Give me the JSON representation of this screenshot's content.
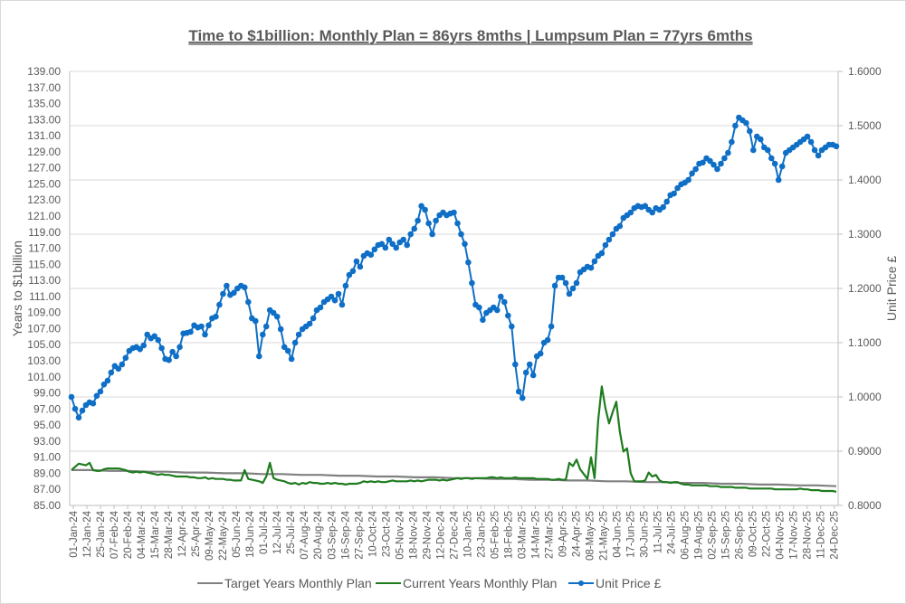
{
  "chart_data": {
    "type": "line",
    "title": "Time to $1billion: Monthly Plan = 86yrs 8mths | Lumpsum Plan = 77yrs 6mths",
    "ylabel": "Years to $1billion",
    "y2label": "Unit Price £",
    "ylim": [
      85,
      139
    ],
    "y2lim": [
      0.8,
      1.6
    ],
    "grid": true,
    "legend_position": "bottom",
    "yticks": [
      "85.00",
      "87.00",
      "89.00",
      "91.00",
      "93.00",
      "95.00",
      "97.00",
      "99.00",
      "101.00",
      "103.00",
      "105.00",
      "107.00",
      "109.00",
      "111.00",
      "113.00",
      "115.00",
      "117.00",
      "119.00",
      "121.00",
      "123.00",
      "125.00",
      "127.00",
      "129.00",
      "131.00",
      "133.00",
      "135.00",
      "137.00",
      "139.00"
    ],
    "y2ticks": [
      "0.8000",
      "0.9000",
      "1.0000",
      "1.1000",
      "1.2000",
      "1.3000",
      "1.4000",
      "1.5000",
      "1.6000"
    ],
    "xticks": [
      "01-Jan-24",
      "12-Jan-24",
      "25-Jan-24",
      "07-Feb-24",
      "20-Feb-24",
      "04-Mar-24",
      "15-Mar-24",
      "28-Mar-24",
      "12-Apr-24",
      "25-Apr-24",
      "09-May-24",
      "22-May-24",
      "05-Jun-24",
      "18-Jun-24",
      "01-Jul-24",
      "12-Jul-24",
      "25-Jul-24",
      "07-Aug-24",
      "20-Aug-24",
      "03-Sep-24",
      "16-Sep-24",
      "27-Sep-24",
      "10-Oct-24",
      "23-Oct-24",
      "05-Nov-24",
      "18-Nov-24",
      "29-Nov-24",
      "12-Dec-24",
      "27-Dec-24",
      "10-Jan-25",
      "23-Jan-25",
      "05-Feb-25",
      "18-Feb-25",
      "03-Mar-25",
      "14-Mar-25",
      "27-Mar-25",
      "09-Apr-25",
      "24-Apr-25",
      "08-May-25",
      "21-May-25",
      "04-Jun-25",
      "17-Jun-25",
      "30-Jun-25",
      "11-Jul-25",
      "24-Jul-25",
      "06-Aug-25",
      "19-Aug-25",
      "02-Sep-25",
      "15-Sep-25",
      "26-Sep-25",
      "09-Oct-25",
      "22-Oct-25",
      "04-Nov-25",
      "17-Nov-25",
      "28-Nov-25",
      "11-Dec-25",
      "24-Dec-25"
    ],
    "x_fraction_note": "series values sampled evenly across the x range (first to last date)",
    "series": [
      {
        "name": "Target Years Monthly Plan",
        "axis": "left",
        "color": "#808080",
        "marker": false,
        "values": [
          89.4,
          89.4,
          89.3,
          89.3,
          89.2,
          89.2,
          89.1,
          89.1,
          89.0,
          89.0,
          88.9,
          88.9,
          88.8,
          88.8,
          88.7,
          88.7,
          88.6,
          88.6,
          88.5,
          88.5,
          88.4,
          88.4,
          88.3,
          88.3,
          88.2,
          88.2,
          88.1,
          88.1,
          88.0,
          88.0,
          87.9,
          87.9,
          87.8,
          87.8,
          87.7,
          87.7,
          87.6,
          87.6,
          87.5,
          87.5,
          87.4
        ]
      },
      {
        "name": "Current Years Monthly Plan",
        "axis": "left",
        "color": "#1e7b1e",
        "marker": false,
        "values": [
          89.4,
          89.8,
          90.2,
          90.1,
          90.0,
          90.3,
          89.4,
          89.3,
          89.3,
          89.5,
          89.6,
          89.6,
          89.6,
          89.6,
          89.5,
          89.4,
          89.2,
          89.1,
          89.2,
          89.1,
          89.2,
          89.1,
          89.0,
          88.9,
          88.8,
          88.9,
          88.8,
          88.8,
          88.7,
          88.6,
          88.6,
          88.6,
          88.6,
          88.5,
          88.5,
          88.4,
          88.4,
          88.5,
          88.3,
          88.4,
          88.3,
          88.3,
          88.3,
          88.2,
          88.2,
          88.1,
          88.1,
          88.1,
          89.4,
          88.3,
          88.2,
          88.1,
          88.0,
          87.8,
          88.6,
          90.3,
          88.4,
          88.2,
          88.1,
          88.0,
          87.8,
          87.7,
          87.8,
          87.6,
          87.8,
          87.7,
          87.9,
          87.8,
          87.8,
          87.7,
          87.7,
          87.8,
          87.7,
          87.8,
          87.7,
          87.7,
          87.6,
          87.7,
          87.7,
          87.7,
          87.8,
          88.0,
          87.9,
          88.0,
          87.9,
          88.0,
          87.9,
          87.9,
          88.0,
          88.1,
          88.0,
          88.0,
          88.0,
          88.0,
          88.1,
          88.0,
          88.1,
          88.0,
          88.1,
          88.2,
          88.2,
          88.2,
          88.1,
          88.2,
          88.1,
          88.2,
          88.3,
          88.4,
          88.3,
          88.4,
          88.4,
          88.3,
          88.4,
          88.4,
          88.4,
          88.4,
          88.5,
          88.5,
          88.4,
          88.5,
          88.4,
          88.4,
          88.4,
          88.5,
          88.4,
          88.4,
          88.4,
          88.4,
          88.4,
          88.3,
          88.3,
          88.3,
          88.3,
          88.2,
          88.2,
          88.3,
          88.2,
          88.2,
          90.3,
          89.9,
          90.7,
          89.5,
          88.9,
          88.3,
          91.0,
          88.4,
          95.6,
          99.8,
          97.1,
          95.2,
          96.6,
          97.9,
          94.2,
          91.7,
          92.1,
          89.0,
          88.0,
          88.0,
          88.0,
          88.1,
          89.1,
          88.6,
          88.8,
          88.1,
          87.9,
          87.9,
          87.8,
          87.9,
          87.9,
          87.7,
          87.6,
          87.6,
          87.5,
          87.5,
          87.5,
          87.5,
          87.5,
          87.4,
          87.4,
          87.4,
          87.3,
          87.3,
          87.3,
          87.3,
          87.2,
          87.2,
          87.2,
          87.2,
          87.1,
          87.1,
          87.1,
          87.1,
          87.1,
          87.1,
          87.1,
          87.0,
          87.0,
          87.0,
          87.0,
          87.0,
          87.0,
          87.0,
          87.1,
          87.0,
          87.0,
          86.9,
          86.9,
          86.9,
          86.8,
          86.8,
          86.8,
          86.8,
          86.7
        ]
      },
      {
        "name": "Unit Price £",
        "axis": "right",
        "color": "#0f6fc6",
        "marker": true,
        "values": [
          1.0,
          0.978,
          0.962,
          0.975,
          0.985,
          0.99,
          0.988,
          1.002,
          1.01,
          1.023,
          1.03,
          1.045,
          1.057,
          1.052,
          1.06,
          1.072,
          1.085,
          1.09,
          1.092,
          1.088,
          1.095,
          1.115,
          1.108,
          1.112,
          1.105,
          1.09,
          1.07,
          1.068,
          1.083,
          1.075,
          1.092,
          1.117,
          1.118,
          1.12,
          1.132,
          1.128,
          1.13,
          1.115,
          1.132,
          1.145,
          1.148,
          1.17,
          1.19,
          1.205,
          1.188,
          1.192,
          1.2,
          1.205,
          1.202,
          1.175,
          1.145,
          1.14,
          1.075,
          1.115,
          1.13,
          1.16,
          1.155,
          1.148,
          1.125,
          1.092,
          1.085,
          1.07,
          1.1,
          1.115,
          1.125,
          1.13,
          1.135,
          1.145,
          1.16,
          1.165,
          1.175,
          1.18,
          1.185,
          1.178,
          1.19,
          1.17,
          1.205,
          1.225,
          1.232,
          1.25,
          1.24,
          1.26,
          1.265,
          1.262,
          1.272,
          1.28,
          1.282,
          1.275,
          1.29,
          1.282,
          1.275,
          1.285,
          1.29,
          1.28,
          1.3,
          1.31,
          1.325,
          1.352,
          1.345,
          1.32,
          1.3,
          1.325,
          1.335,
          1.34,
          1.335,
          1.338,
          1.34,
          1.32,
          1.3,
          1.282,
          1.248,
          1.21,
          1.17,
          1.165,
          1.142,
          1.155,
          1.16,
          1.165,
          1.16,
          1.185,
          1.175,
          1.15,
          1.13,
          1.06,
          1.01,
          0.998,
          1.045,
          1.06,
          1.04,
          1.075,
          1.08,
          1.1,
          1.105,
          1.13,
          1.205,
          1.22,
          1.22,
          1.21,
          1.19,
          1.2,
          1.21,
          1.23,
          1.235,
          1.24,
          1.238,
          1.25,
          1.26,
          1.265,
          1.28,
          1.29,
          1.3,
          1.31,
          1.315,
          1.33,
          1.335,
          1.34,
          1.348,
          1.352,
          1.35,
          1.352,
          1.345,
          1.34,
          1.348,
          1.345,
          1.35,
          1.36,
          1.372,
          1.375,
          1.385,
          1.392,
          1.395,
          1.4,
          1.412,
          1.42,
          1.43,
          1.432,
          1.44,
          1.435,
          1.428,
          1.42,
          1.43,
          1.44,
          1.45,
          1.47,
          1.5,
          1.515,
          1.51,
          1.505,
          1.49,
          1.455,
          1.48,
          1.475,
          1.46,
          1.455,
          1.44,
          1.43,
          1.4,
          1.425,
          1.45,
          1.455,
          1.46,
          1.465,
          1.47,
          1.475,
          1.48,
          1.47,
          1.455,
          1.445,
          1.455,
          1.46,
          1.465,
          1.465,
          1.462
        ]
      }
    ]
  }
}
